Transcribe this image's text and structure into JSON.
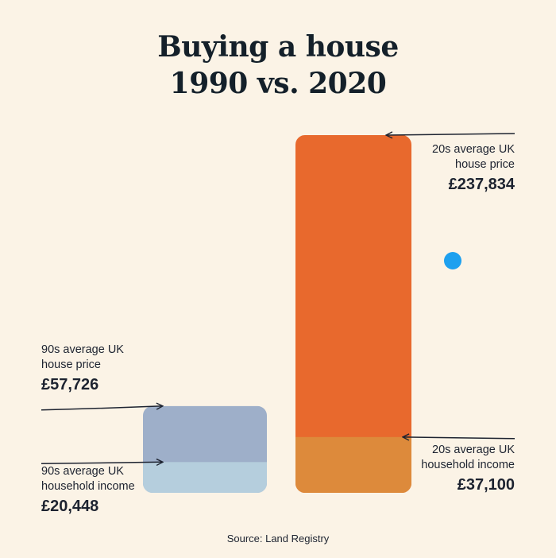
{
  "title": {
    "line1": "Buying a house",
    "line2": "1990 vs. 2020"
  },
  "source": "Source: Land Registry",
  "colors": {
    "background": "#fbf3e6",
    "price_1990": "#9eafc9",
    "income_1990": "#b5cedd",
    "price_2020": "#e8692d",
    "income_2020": "#dd8a3b",
    "dot": "#1da0ef"
  },
  "chart_data": {
    "type": "bar",
    "categories": [
      "1990",
      "2020"
    ],
    "unit": "GBP",
    "series": [
      {
        "name": "average UK house price",
        "values": [
          57726,
          237834
        ]
      },
      {
        "name": "average UK household income",
        "values": [
          20448,
          37100
        ]
      }
    ],
    "annotations": [
      {
        "key": "p90",
        "lines": [
          "90s average UK",
          "house price"
        ],
        "value": "£57,726"
      },
      {
        "key": "i90",
        "lines": [
          "90s average UK",
          "household income"
        ],
        "value": "£20,448"
      },
      {
        "key": "p20",
        "lines": [
          "20s average UK",
          "house price"
        ],
        "value": "£237,834"
      },
      {
        "key": "i20",
        "lines": [
          "20s average UK",
          "household income"
        ],
        "value": "£37,100"
      }
    ]
  }
}
